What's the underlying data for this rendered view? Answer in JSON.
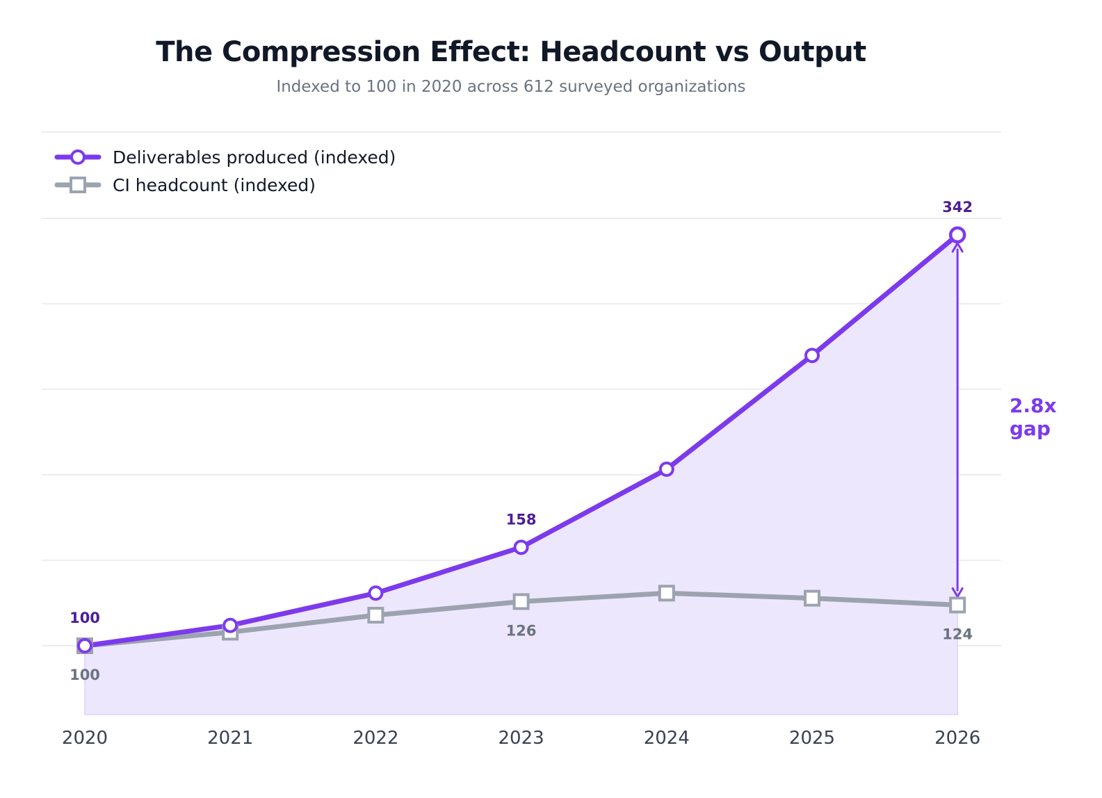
{
  "chart_data": {
    "type": "line",
    "title": "The Compression Effect: Headcount vs Output",
    "subtitle": "Indexed to 100 in 2020 across 612 surveyed organizations",
    "xlabel": "",
    "ylabel": "",
    "categories": [
      "2020",
      "2021",
      "2022",
      "2023",
      "2024",
      "2025",
      "2026"
    ],
    "ylim": [
      60,
      400
    ],
    "grid": true,
    "legend_position": "top-left",
    "series": [
      {
        "name": "Deliverables produced (indexed)",
        "values": [
          100,
          112,
          131,
          158,
          204,
          271,
          342
        ],
        "color": "#7c3aed",
        "marker": "circle",
        "fill": true
      },
      {
        "name": "CI headcount (indexed)",
        "values": [
          100,
          108,
          118,
          126,
          131,
          128,
          124
        ],
        "color": "#9ca3af",
        "marker": "square"
      }
    ],
    "point_labels": [
      {
        "series": 0,
        "index": 0,
        "text": "100"
      },
      {
        "series": 0,
        "index": 3,
        "text": "158"
      },
      {
        "series": 0,
        "index": 6,
        "text": "342"
      },
      {
        "series": 1,
        "index": 0,
        "text": "100"
      },
      {
        "series": 1,
        "index": 3,
        "text": "126"
      },
      {
        "series": 1,
        "index": 6,
        "text": "124"
      }
    ],
    "annotation": {
      "line1": "2.8x",
      "line2": "gap"
    }
  }
}
